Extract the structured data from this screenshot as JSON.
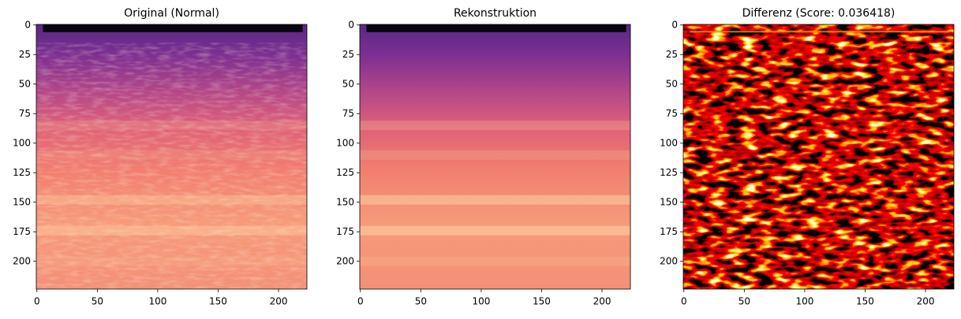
{
  "chart_data": [
    {
      "type": "image",
      "title": "Original (Normal)",
      "colormap": "magma",
      "xlim": [
        -0.5,
        223.5
      ],
      "ylim": [
        223.5,
        -0.5
      ],
      "xticks": [
        0,
        50,
        100,
        150,
        200
      ],
      "yticks": [
        0,
        25,
        50,
        75,
        100,
        125,
        150,
        175,
        200
      ]
    },
    {
      "type": "image",
      "title": "Rekonstruktion",
      "colormap": "magma",
      "xlim": [
        -0.5,
        223.5
      ],
      "ylim": [
        223.5,
        -0.5
      ],
      "xticks": [
        0,
        50,
        100,
        150,
        200
      ],
      "yticks": [
        0,
        25,
        50,
        75,
        100,
        125,
        150,
        175,
        200
      ]
    },
    {
      "type": "image",
      "title": "Differenz (Score: 0.036418)",
      "colormap": "hot",
      "xlim": [
        -0.5,
        223.5
      ],
      "ylim": [
        223.5,
        -0.5
      ],
      "xticks": [
        0,
        50,
        100,
        150,
        200
      ],
      "yticks": [
        0,
        25,
        50,
        75,
        100,
        125,
        150,
        175,
        200
      ]
    }
  ]
}
